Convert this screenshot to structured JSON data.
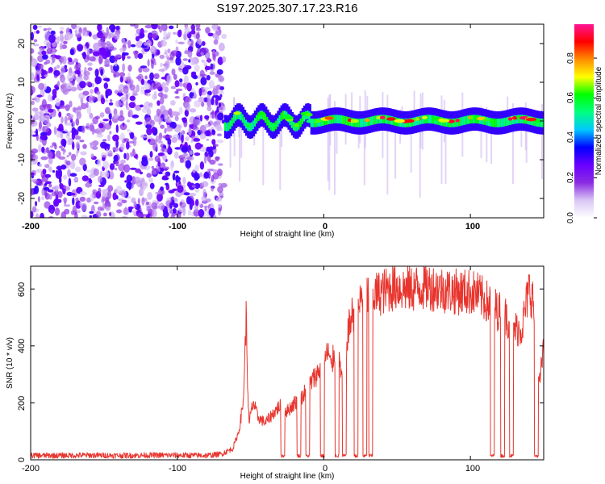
{
  "title": "S197.2025.307.17.23.R16",
  "chart_data": [
    {
      "type": "heatmap",
      "xlabel": "Height of straight line (km)",
      "ylabel": "Frequency (Hz)",
      "xlim": [
        -200,
        150
      ],
      "ylim": [
        -25,
        25
      ],
      "xticks": [
        -200,
        -100,
        0,
        100
      ],
      "yticks": [
        -20,
        -10,
        0,
        10,
        20
      ],
      "xtick_labels": [
        "-200",
        "-100",
        "0",
        "100"
      ],
      "ytick_labels": [
        "-20",
        "-10",
        "0",
        "10",
        "20"
      ],
      "noise_region_x": [
        -200,
        -68
      ],
      "signal_band_hz": [
        -3,
        3
      ],
      "signal_center_hz": 0,
      "colorbar": {
        "label": "Normalized spectral amplitude",
        "range": [
          0.0,
          0.97
        ],
        "ticks": [
          0.0,
          0.2,
          0.4,
          0.6,
          0.8
        ],
        "tick_labels": [
          "0.0",
          "0.2",
          "0.4",
          "0.6",
          "0.8"
        ],
        "colors": [
          "#ffffff",
          "#d9c6f5",
          "#8a2be2",
          "#6a00ff",
          "#0000ff",
          "#00c8ff",
          "#00ff80",
          "#00ff00",
          "#ffff00",
          "#ff8c00",
          "#ff0000",
          "#ff1493"
        ]
      }
    },
    {
      "type": "line",
      "xlabel": "Height of straight line (km)",
      "ylabel": "SNR (10 * v/v)",
      "xlim": [
        -200,
        150
      ],
      "ylim": [
        0,
        680
      ],
      "xticks": [
        -200,
        -100,
        0,
        100
      ],
      "yticks": [
        0,
        200,
        400,
        600
      ],
      "xtick_labels": [
        "-200",
        "-100",
        "0",
        "100"
      ],
      "ytick_labels": [
        "0",
        "200",
        "400",
        "600"
      ],
      "color": "#e8352e",
      "series": [
        {
          "name": "SNR",
          "x": [
            -200,
            -180,
            -160,
            -140,
            -120,
            -100,
            -80,
            -70,
            -62,
            -58,
            -55,
            -53,
            -52,
            -51,
            -50,
            -48,
            -45,
            -40,
            -35,
            -30,
            -25,
            -20,
            -15,
            -10,
            -5,
            0,
            3,
            5,
            8,
            10,
            12,
            14,
            16,
            18,
            20,
            22,
            25,
            30,
            35,
            40,
            45,
            50,
            55,
            60,
            70,
            80,
            90,
            100,
            105,
            110,
            115,
            120,
            125,
            130,
            135,
            140,
            143,
            145,
            147,
            150
          ],
          "y": [
            15,
            15,
            16,
            15,
            16,
            16,
            15,
            20,
            40,
            100,
            200,
            500,
            280,
            120,
            160,
            200,
            150,
            130,
            160,
            190,
            170,
            200,
            220,
            260,
            300,
            340,
            380,
            320,
            400,
            380,
            300,
            200,
            440,
            480,
            520,
            500,
            560,
            580,
            580,
            590,
            600,
            610,
            600,
            600,
            610,
            600,
            590,
            590,
            580,
            560,
            540,
            520,
            500,
            460,
            460,
            600,
            560,
            280,
            260,
            400
          ]
        }
      ],
      "dropouts_x": [
        -28,
        -17,
        -11,
        -1,
        9,
        14,
        22,
        28,
        32,
        115,
        122,
        128,
        145
      ]
    }
  ]
}
